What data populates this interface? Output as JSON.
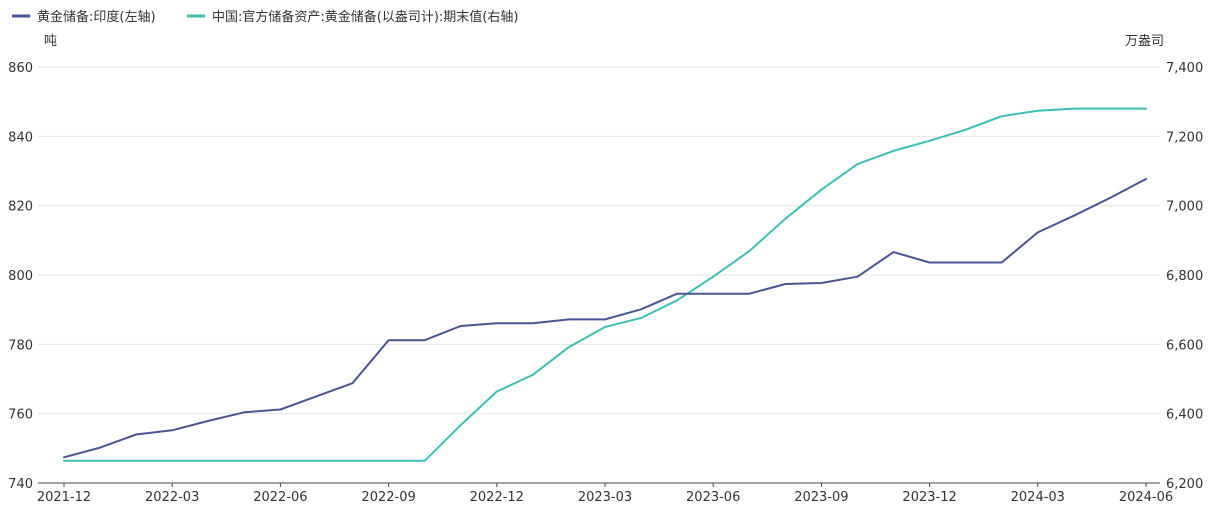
{
  "chart_data": {
    "type": "line",
    "legend": {
      "position": "top-left"
    },
    "grid": true,
    "x_tick_labels": [
      "2021-12",
      "2022-03",
      "2022-06",
      "2022-09",
      "2022-12",
      "2023-03",
      "2023-06",
      "2023-09",
      "2023-12",
      "2024-03",
      "2024-06"
    ],
    "x": [
      "2021-12",
      "2022-01",
      "2022-02",
      "2022-03",
      "2022-04",
      "2022-05",
      "2022-06",
      "2022-07",
      "2022-08",
      "2022-09",
      "2022-10",
      "2022-11",
      "2022-12",
      "2023-01",
      "2023-02",
      "2023-03",
      "2023-04",
      "2023-05",
      "2023-06",
      "2023-07",
      "2023-08",
      "2023-09",
      "2023-10",
      "2023-11",
      "2023-12",
      "2024-01",
      "2024-02",
      "2024-03",
      "2024-04",
      "2024-05",
      "2024-06"
    ],
    "y_left": {
      "unit": "吨",
      "range": [
        740,
        860
      ],
      "ticks": [
        "740",
        "760",
        "780",
        "800",
        "820",
        "840",
        "860"
      ]
    },
    "y_right": {
      "unit": "万盎司",
      "range": [
        6200,
        7400
      ],
      "ticks": [
        "6,200",
        "6,400",
        "6,600",
        "6,800",
        "7,000",
        "7,200",
        "7,400"
      ]
    },
    "series": [
      {
        "name": "黄金储备:印度(左轴)",
        "axis": "left",
        "color": "#4b5494",
        "values": [
          747.4,
          750.2,
          754.0,
          755.2,
          757.9,
          760.4,
          761.2,
          765.0,
          768.8,
          781.2,
          781.2,
          785.3,
          786.1,
          786.1,
          787.2,
          787.2,
          790.1,
          794.6,
          794.6,
          794.6,
          797.4,
          797.7,
          799.5,
          806.6,
          803.6,
          803.6,
          803.6,
          812.3,
          817.1,
          822.2,
          827.7
        ]
      },
      {
        "name": "中国:官方储备资产:黄金储备(以盎司计):期末值(右轴)",
        "axis": "right",
        "color": "#3ebfb4",
        "values": [
          6264,
          6264,
          6264,
          6264,
          6264,
          6264,
          6264,
          6264,
          6264,
          6264,
          6264,
          6367,
          6464,
          6512,
          6592,
          6650,
          6676,
          6727,
          6795,
          6869,
          6962,
          7046,
          7120,
          7158,
          7187,
          7219,
          7258,
          7274,
          7280,
          7280,
          7280
        ]
      }
    ]
  }
}
